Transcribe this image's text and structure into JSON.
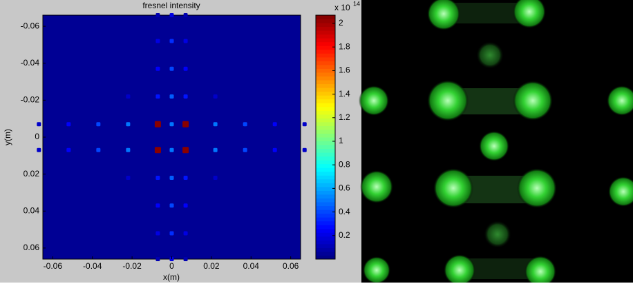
{
  "chart_data": {
    "type": "heatmap",
    "title": "fresnel intensity",
    "x_label": "x(m)",
    "y_label": "y(m)",
    "xlim": [
      -0.065,
      0.065
    ],
    "ylim": [
      -0.066,
      0.066
    ],
    "y_reversed": true,
    "xticks": [
      -0.06,
      -0.04,
      -0.02,
      0,
      0.02,
      0.04,
      0.06
    ],
    "yticks": [
      -0.06,
      -0.04,
      -0.02,
      0,
      0.02,
      0.04,
      0.06
    ],
    "colormap": "jet",
    "clim": [
      0,
      2.07
    ],
    "colorbar_ticks": [
      0.2,
      0.4,
      0.6,
      0.8,
      1,
      1.2,
      1.4,
      1.6,
      1.8,
      2
    ],
    "colorbar_multiplier": "x 10",
    "colorbar_exponent": 14,
    "x": [
      -0.067,
      -0.052,
      -0.037,
      -0.022,
      -0.007,
      0,
      0.007,
      0.022,
      0.037,
      0.052,
      0.067,
      -0.067,
      -0.052,
      -0.037,
      -0.022,
      -0.007,
      0,
      0.007,
      0.022,
      0.037,
      0.052,
      0.067,
      0,
      0,
      0,
      0,
      0,
      0,
      0,
      0,
      -0.007,
      -0.007,
      -0.007,
      -0.007,
      -0.007,
      -0.007,
      -0.007,
      -0.007,
      0.007,
      0.007,
      0.007,
      0.007,
      0.007,
      0.007,
      0.007,
      0.007,
      -0.022,
      0.022,
      -0.022,
      0.022
    ],
    "y": [
      -0.007,
      -0.007,
      -0.007,
      -0.007,
      -0.007,
      -0.007,
      -0.007,
      -0.007,
      -0.007,
      -0.007,
      -0.007,
      0.007,
      0.007,
      0.007,
      0.007,
      0.007,
      0.007,
      0.007,
      0.007,
      0.007,
      0.007,
      0.007,
      -0.066,
      -0.052,
      -0.037,
      -0.022,
      0.022,
      0.037,
      0.052,
      0.066,
      -0.066,
      -0.052,
      -0.037,
      -0.022,
      0.022,
      0.037,
      0.052,
      0.066,
      -0.066,
      -0.052,
      -0.037,
      -0.022,
      0.022,
      0.037,
      0.052,
      0.066,
      -0.022,
      -0.022,
      0.022,
      0.022
    ],
    "values": [
      0.15,
      0.25,
      0.4,
      0.5,
      2.05,
      0.5,
      2.05,
      0.5,
      0.4,
      0.25,
      0.15,
      0.15,
      0.25,
      0.4,
      0.5,
      2.05,
      0.5,
      2.05,
      0.5,
      0.4,
      0.25,
      0.15,
      0.2,
      0.35,
      0.4,
      0.45,
      0.45,
      0.4,
      0.35,
      0.2,
      0.1,
      0.2,
      0.25,
      0.3,
      0.3,
      0.25,
      0.2,
      0.1,
      0.1,
      0.2,
      0.25,
      0.3,
      0.3,
      0.25,
      0.2,
      0.1,
      0.15,
      0.15,
      0.15,
      0.15
    ]
  }
}
